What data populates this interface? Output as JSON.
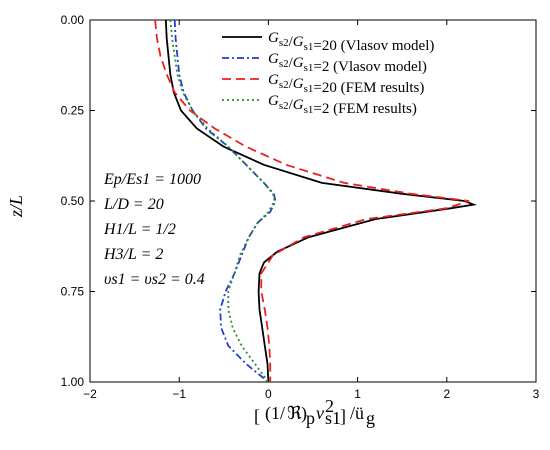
{
  "chart_data": {
    "type": "line",
    "xlabel": "[(1/ℜ)p v²s1]/üg",
    "ylabel": "z/L",
    "xlim": [
      -2,
      3
    ],
    "ylim": [
      0,
      1
    ],
    "y_inverted": true,
    "x_ticks": [
      "−2",
      "−1",
      "0",
      "1",
      "2",
      "3"
    ],
    "y_ticks": [
      "0.00",
      "0.25",
      "0.50",
      "0.75",
      "1.00"
    ],
    "legend_position": "top-right",
    "series": [
      {
        "name": "Gs2/Gs1=20 (Vlasov model)",
        "color": "#000000",
        "dash": "solid",
        "points": [
          [
            -1.15,
            0.0
          ],
          [
            -1.14,
            0.05
          ],
          [
            -1.12,
            0.1
          ],
          [
            -1.1,
            0.15
          ],
          [
            -1.06,
            0.2
          ],
          [
            -0.98,
            0.25
          ],
          [
            -0.8,
            0.3
          ],
          [
            -0.5,
            0.35
          ],
          [
            -0.05,
            0.4
          ],
          [
            0.6,
            0.45
          ],
          [
            1.5,
            0.48
          ],
          [
            2.2,
            0.5
          ],
          [
            2.3,
            0.51
          ],
          [
            2.05,
            0.52
          ],
          [
            1.2,
            0.55
          ],
          [
            0.45,
            0.6
          ],
          [
            0.1,
            0.64
          ],
          [
            -0.05,
            0.67
          ],
          [
            -0.1,
            0.7
          ],
          [
            -0.11,
            0.75
          ],
          [
            -0.1,
            0.8
          ],
          [
            -0.07,
            0.85
          ],
          [
            -0.04,
            0.9
          ],
          [
            -0.01,
            0.95
          ],
          [
            0.0,
            1.0
          ]
        ]
      },
      {
        "name": "Gs2/Gs1=2 (Vlasov model)",
        "color": "#1f3fd6",
        "dash": "dashdot",
        "points": [
          [
            -1.05,
            0.0
          ],
          [
            -1.04,
            0.05
          ],
          [
            -1.02,
            0.1
          ],
          [
            -1.0,
            0.15
          ],
          [
            -0.95,
            0.2
          ],
          [
            -0.85,
            0.25
          ],
          [
            -0.7,
            0.3
          ],
          [
            -0.45,
            0.35
          ],
          [
            -0.25,
            0.4
          ],
          [
            -0.05,
            0.45
          ],
          [
            0.06,
            0.48
          ],
          [
            0.08,
            0.5
          ],
          [
            0.02,
            0.53
          ],
          [
            -0.12,
            0.56
          ],
          [
            -0.22,
            0.6
          ],
          [
            -0.3,
            0.65
          ],
          [
            -0.38,
            0.7
          ],
          [
            -0.48,
            0.75
          ],
          [
            -0.54,
            0.8
          ],
          [
            -0.53,
            0.85
          ],
          [
            -0.45,
            0.9
          ],
          [
            -0.25,
            0.95
          ],
          [
            -0.05,
            0.99
          ],
          [
            0.0,
            1.0
          ]
        ]
      },
      {
        "name": "Gs2/Gs1=20 (FEM results)",
        "color": "#e8231f",
        "dash": "dashed",
        "points": [
          [
            -1.27,
            0.0
          ],
          [
            -1.25,
            0.05
          ],
          [
            -1.21,
            0.1
          ],
          [
            -1.14,
            0.15
          ],
          [
            -1.05,
            0.2
          ],
          [
            -0.88,
            0.25
          ],
          [
            -0.6,
            0.3
          ],
          [
            -0.25,
            0.35
          ],
          [
            0.2,
            0.4
          ],
          [
            0.85,
            0.45
          ],
          [
            1.6,
            0.48
          ],
          [
            2.25,
            0.5
          ],
          [
            2.0,
            0.52
          ],
          [
            1.1,
            0.55
          ],
          [
            0.4,
            0.6
          ],
          [
            0.05,
            0.65
          ],
          [
            -0.08,
            0.7
          ],
          [
            -0.08,
            0.75
          ],
          [
            -0.04,
            0.8
          ],
          [
            -0.01,
            0.85
          ],
          [
            0.01,
            0.9
          ],
          [
            0.02,
            0.95
          ],
          [
            0.02,
            1.0
          ]
        ]
      },
      {
        "name": "Gs2/Gs1=2 (FEM results)",
        "color": "#2e8b2e",
        "dash": "dotted",
        "points": [
          [
            -1.1,
            0.0
          ],
          [
            -1.08,
            0.05
          ],
          [
            -1.05,
            0.1
          ],
          [
            -1.02,
            0.15
          ],
          [
            -0.96,
            0.2
          ],
          [
            -0.85,
            0.25
          ],
          [
            -0.68,
            0.3
          ],
          [
            -0.45,
            0.35
          ],
          [
            -0.25,
            0.4
          ],
          [
            -0.05,
            0.45
          ],
          [
            0.05,
            0.48
          ],
          [
            0.07,
            0.5
          ],
          [
            0.0,
            0.53
          ],
          [
            -0.12,
            0.56
          ],
          [
            -0.22,
            0.6
          ],
          [
            -0.32,
            0.65
          ],
          [
            -0.38,
            0.7
          ],
          [
            -0.45,
            0.75
          ],
          [
            -0.45,
            0.8
          ],
          [
            -0.4,
            0.85
          ],
          [
            -0.3,
            0.9
          ],
          [
            -0.15,
            0.95
          ],
          [
            0.0,
            1.0
          ]
        ]
      }
    ],
    "legend_labels": [
      {
        "main": "G",
        "sub1": "s2",
        "slash": "/",
        "main2": "G",
        "sub2": "s1",
        "rest": "=20 (Vlasov model)"
      },
      {
        "main": "G",
        "sub1": "s2",
        "slash": "/",
        "main2": "G",
        "sub2": "s1",
        "rest": "=2 (Vlasov model)"
      },
      {
        "main": "G",
        "sub1": "s2",
        "slash": "/",
        "main2": "G",
        "sub2": "s1",
        "rest": "=20 (FEM results)"
      },
      {
        "main": "G",
        "sub1": "s2",
        "slash": "/",
        "main2": "G",
        "sub2": "s1",
        "rest": "=2 (FEM results)"
      }
    ],
    "annotations": [
      "Ep/Es1 = 1000",
      "L/D = 20",
      "H1/L = 1/2",
      "H3/L = 2",
      "υs1 = υs2 = 0.4"
    ]
  }
}
